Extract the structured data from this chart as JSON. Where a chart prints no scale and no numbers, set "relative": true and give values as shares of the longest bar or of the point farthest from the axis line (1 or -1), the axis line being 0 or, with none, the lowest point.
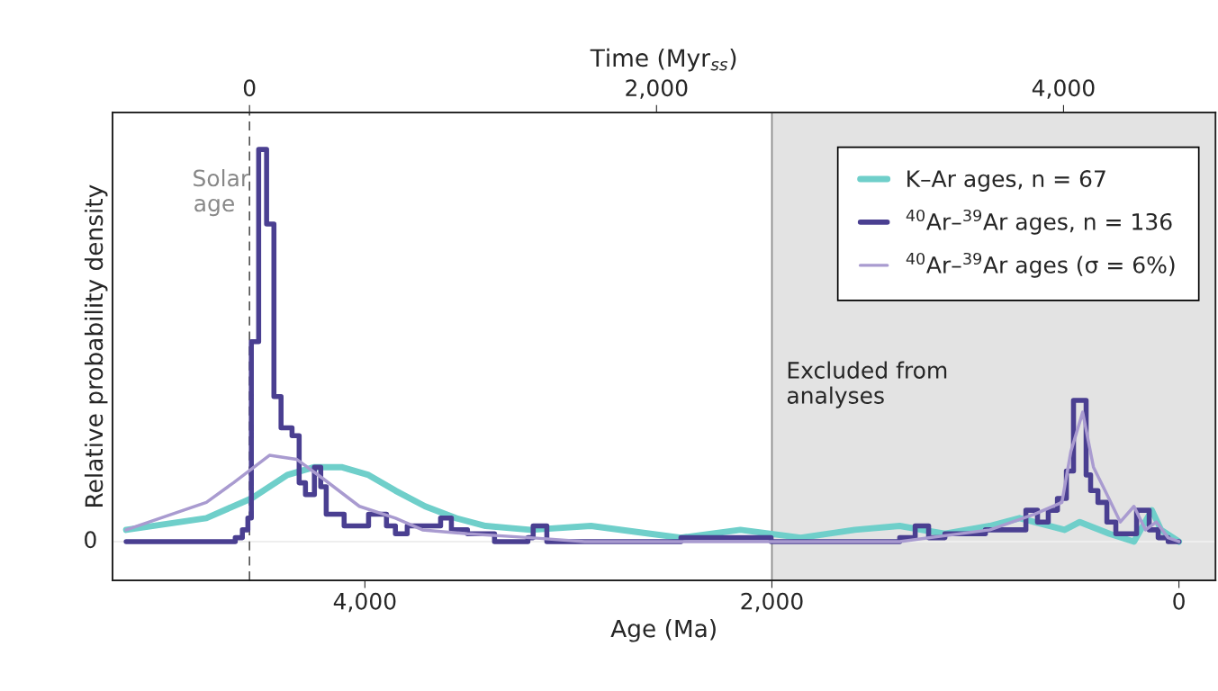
{
  "chart_data": {
    "type": "step",
    "xlabel": "Age (Ma)",
    "ylabel": "Relative probability density",
    "x2label": "Time (Myr$_{ss}$)",
    "relative": true,
    "xlim": [
      5240,
      -180
    ],
    "xticks": [
      {
        "value": 4000,
        "label": "4,000"
      },
      {
        "value": 2000,
        "label": "2,000"
      },
      0
    ],
    "x2lim": [
      -673,
      4747
    ],
    "x2ticks": [
      0,
      {
        "value": 2000,
        "label": "2,000"
      },
      {
        "value": 4000,
        "label": "4,000"
      }
    ],
    "annotations": [
      "0"
    ],
    "legend": "top right",
    "ref_lines": [
      {
        "axis": "x",
        "value": 2000,
        "color": "#888888",
        "line_style": "solid"
      },
      {
        "axis": "x",
        "value": 4567,
        "label": "Solar\nage",
        "color": "#555555",
        "line_style": "dashed"
      }
    ],
    "bands": [
      {
        "axis": "x",
        "from": 2000,
        "to": -180,
        "label": "Excluded from\nanalyses",
        "color": "#e3e3e3"
      }
    ],
    "series": [
      {
        "name": "K–Ar ages, n = 67",
        "type": "line",
        "color": "#6fcfca",
        "x": [
          5173,
          4779,
          4558,
          4381,
          4248,
          4115,
          3982,
          3850,
          3704,
          3553,
          3407,
          3186,
          2889,
          2597,
          2447,
          2155,
          1858,
          1593,
          1372,
          1150,
          929,
          783,
          562,
          487,
          341,
          221,
          133,
          88,
          0
        ],
        "values": [
          0.03,
          0.06,
          0.11,
          0.17,
          0.19,
          0.19,
          0.17,
          0.13,
          0.09,
          0.06,
          0.04,
          0.03,
          0.04,
          0.02,
          0.01,
          0.03,
          0.01,
          0.03,
          0.04,
          0.02,
          0.04,
          0.06,
          0.03,
          0.05,
          0.02,
          0.0,
          0.08,
          0.03,
          0.0
        ]
      },
      {
        "name": "$^{40}$Ar–$^{39}$Ar ages, n = 136",
        "color": "#4a3f91",
        "x": [
          5173,
          4668,
          4637,
          4602,
          4575,
          4558,
          4522,
          4483,
          4447,
          4412,
          4358,
          4323,
          4292,
          4248,
          4217,
          4190,
          4102,
          3982,
          3894,
          3850,
          3792,
          3628,
          3575,
          3496,
          3363,
          3199,
          3173,
          3106,
          2447,
          2301,
          2155,
          2004,
          1372,
          1296,
          1230,
          1150,
          951,
          752,
          695,
          642,
          597,
          553,
          518,
          456,
          434,
          398,
          354,
          310,
          265,
          208,
          146,
          102,
          53,
          0
        ],
        "values": [
          0.0,
          0.0,
          0.01,
          0.03,
          0.06,
          0.51,
          1.0,
          0.81,
          0.37,
          0.29,
          0.27,
          0.15,
          0.12,
          0.19,
          0.14,
          0.07,
          0.04,
          0.07,
          0.04,
          0.02,
          0.04,
          0.06,
          0.03,
          0.02,
          0.0,
          0.01,
          0.04,
          0.0,
          0.01,
          0.01,
          0.01,
          0.0,
          0.01,
          0.04,
          0.01,
          0.02,
          0.03,
          0.08,
          0.05,
          0.08,
          0.11,
          0.18,
          0.36,
          0.17,
          0.13,
          0.1,
          0.05,
          0.02,
          0.02,
          0.08,
          0.03,
          0.01,
          0.0,
          0.0
        ]
      },
      {
        "name": "$^{40}$Ar–$^{39}$Ar ages (σ = 6%)",
        "type": "line",
        "color": "#a99bd0",
        "x": [
          5173,
          4779,
          4646,
          4469,
          4336,
          4204,
          4027,
          3850,
          3717,
          3496,
          3186,
          2920,
          1372,
          929,
          708,
          575,
          531,
          473,
          420,
          363,
          288,
          221,
          164,
          111,
          53,
          0
        ],
        "values": [
          0.03,
          0.1,
          0.15,
          0.22,
          0.21,
          0.16,
          0.09,
          0.06,
          0.03,
          0.02,
          0.01,
          0.0,
          0.0,
          0.03,
          0.07,
          0.1,
          0.23,
          0.33,
          0.19,
          0.13,
          0.05,
          0.09,
          0.03,
          0.05,
          0.01,
          0.0
        ]
      }
    ]
  }
}
